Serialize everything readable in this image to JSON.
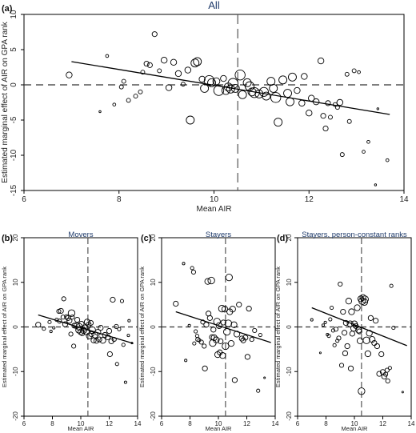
{
  "chart_data": [
    {
      "type": "scatter",
      "panel_label": "(a)",
      "title": "All",
      "xlabel": "Mean AIR",
      "ylabel": "Estimated marginal effect of AIR on GPA rank",
      "xlim": [
        6,
        14
      ],
      "ylim": [
        -15,
        10
      ],
      "xticks": [
        "6",
        "8",
        "10",
        "12",
        "14"
      ],
      "yticks": [
        "-15",
        "-10",
        "-5",
        "0",
        "5",
        "10"
      ],
      "x_ref": 10.5,
      "y_ref": 0,
      "fit_line": [
        [
          7,
          3.3
        ],
        [
          13.7,
          -4.2
        ]
      ],
      "points": [
        [
          6.95,
          1.4,
          3
        ],
        [
          7.6,
          -3.8,
          1
        ],
        [
          7.75,
          4.1,
          1.5
        ],
        [
          7.9,
          -2.8,
          1.5
        ],
        [
          8.05,
          -0.3,
          2
        ],
        [
          8.1,
          0.5,
          2
        ],
        [
          8.2,
          -2.2,
          2
        ],
        [
          8.35,
          -1.6,
          2
        ],
        [
          8.45,
          -1.0,
          2
        ],
        [
          8.5,
          1.8,
          2
        ],
        [
          8.58,
          3.0,
          2.5
        ],
        [
          8.65,
          2.8,
          2.5
        ],
        [
          8.75,
          7.2,
          2.5
        ],
        [
          8.85,
          2.0,
          2
        ],
        [
          8.95,
          3.5,
          3
        ],
        [
          9.05,
          -0.4,
          3
        ],
        [
          9.15,
          3.2,
          3
        ],
        [
          9.25,
          1.6,
          3
        ],
        [
          9.35,
          0.1,
          2
        ],
        [
          9.45,
          2.1,
          3
        ],
        [
          9.5,
          -5.0,
          4
        ],
        [
          9.6,
          3.1,
          4
        ],
        [
          9.65,
          3.3,
          4
        ],
        [
          9.75,
          0.8,
          3
        ],
        [
          9.8,
          -0.5,
          4
        ],
        [
          9.9,
          0.6,
          5
        ],
        [
          9.95,
          0.3,
          4
        ],
        [
          10.05,
          0.5,
          3.5
        ],
        [
          10.1,
          -0.8,
          5
        ],
        [
          10.2,
          0.9,
          3
        ],
        [
          10.25,
          -0.8,
          4
        ],
        [
          10.3,
          -0.3,
          4
        ],
        [
          10.35,
          -0.6,
          4
        ],
        [
          10.4,
          0.2,
          5
        ],
        [
          10.45,
          -0.5,
          4
        ],
        [
          10.55,
          1.4,
          5
        ],
        [
          10.6,
          -1.4,
          4
        ],
        [
          10.7,
          0.3,
          4
        ],
        [
          10.75,
          -0.2,
          4.5
        ],
        [
          10.8,
          -1.0,
          4
        ],
        [
          10.85,
          -1.1,
          5
        ],
        [
          10.95,
          -1.3,
          4
        ],
        [
          11.05,
          -1.0,
          4.5
        ],
        [
          11.1,
          -1.6,
          4
        ],
        [
          11.2,
          0.5,
          4
        ],
        [
          11.25,
          -0.5,
          4
        ],
        [
          11.3,
          -1.8,
          5
        ],
        [
          11.35,
          -5.3,
          4
        ],
        [
          11.45,
          0.7,
          4
        ],
        [
          11.55,
          -1.2,
          4
        ],
        [
          11.6,
          -2.4,
          4
        ],
        [
          11.65,
          1.1,
          4
        ],
        [
          11.75,
          -0.8,
          3
        ],
        [
          11.85,
          -2.6,
          3
        ],
        [
          11.9,
          1.2,
          3
        ],
        [
          12.0,
          -4.0,
          3
        ],
        [
          12.05,
          -1.9,
          3
        ],
        [
          12.15,
          -2.4,
          3
        ],
        [
          12.25,
          3.4,
          3
        ],
        [
          12.3,
          -4.4,
          2.5
        ],
        [
          12.35,
          -6.2,
          2.5
        ],
        [
          12.4,
          -2.6,
          2.5
        ],
        [
          12.45,
          -4.6,
          2
        ],
        [
          12.55,
          -2.8,
          2
        ],
        [
          12.6,
          -3.2,
          2
        ],
        [
          12.65,
          -2.5,
          3
        ],
        [
          12.7,
          -9.9,
          2
        ],
        [
          12.8,
          1.5,
          2
        ],
        [
          12.85,
          -5.2,
          2
        ],
        [
          12.95,
          2.0,
          2
        ],
        [
          13.05,
          1.8,
          1.5
        ],
        [
          13.15,
          -9.5,
          1.5
        ],
        [
          13.25,
          -8.1,
          1.5
        ],
        [
          13.45,
          -3.4,
          1
        ],
        [
          13.4,
          -14.2,
          1
        ],
        [
          13.65,
          -10.7,
          1.5
        ]
      ]
    },
    {
      "type": "scatter",
      "panel_label": "(b)",
      "title": "Movers",
      "xlabel": "Mean AIR",
      "ylabel": "Estimated marginal effect of AIR on GPA rank",
      "xlim": [
        6,
        14
      ],
      "ylim": [
        -20,
        20
      ],
      "xticks": [
        "6",
        "8",
        "10",
        "12",
        "14"
      ],
      "yticks": [
        "-20",
        "-10",
        "0",
        "10",
        "20"
      ],
      "x_ref": 10.5,
      "y_ref": 0,
      "fit_line": [
        [
          7,
          2.7
        ],
        [
          13.7,
          -3.7
        ]
      ],
      "points": [
        [
          7.0,
          0.5,
          3
        ],
        [
          7.4,
          -0.4,
          2
        ],
        [
          7.8,
          1.1,
          2
        ],
        [
          7.9,
          -1.0,
          1.5
        ],
        [
          8.1,
          -0.2,
          1.5
        ],
        [
          8.3,
          1.6,
          2
        ],
        [
          8.45,
          3.5,
          2.5
        ],
        [
          8.5,
          1.3,
          2.5
        ],
        [
          8.6,
          3.6,
          3
        ],
        [
          8.75,
          2.2,
          2.5
        ],
        [
          8.8,
          6.3,
          2.5
        ],
        [
          8.9,
          0.6,
          3
        ],
        [
          9.0,
          2.3,
          2.5
        ],
        [
          9.1,
          2.0,
          3
        ],
        [
          9.2,
          1.4,
          3
        ],
        [
          9.3,
          -1.6,
          2.5
        ],
        [
          9.35,
          3.1,
          4
        ],
        [
          9.4,
          2.2,
          2.5
        ],
        [
          9.5,
          -4.3,
          2.5
        ],
        [
          9.55,
          0.3,
          3
        ],
        [
          9.7,
          0.3,
          3.5
        ],
        [
          9.75,
          1.6,
          3
        ],
        [
          9.85,
          -0.7,
          3.5
        ],
        [
          9.9,
          0.0,
          4
        ],
        [
          10.0,
          -1.1,
          3.5
        ],
        [
          10.05,
          0.7,
          3
        ],
        [
          10.1,
          -1.4,
          3
        ],
        [
          10.2,
          -0.8,
          3.5
        ],
        [
          10.3,
          -0.2,
          3.5
        ],
        [
          10.4,
          -1.0,
          4
        ],
        [
          10.45,
          1.1,
          3.5
        ],
        [
          10.55,
          0.5,
          3
        ],
        [
          10.6,
          -2.0,
          3.5
        ],
        [
          10.7,
          0.9,
          3
        ],
        [
          10.75,
          -1.6,
          3
        ],
        [
          10.8,
          -0.7,
          4
        ],
        [
          10.9,
          -3.0,
          3
        ],
        [
          11.0,
          -1.8,
          3.5
        ],
        [
          11.1,
          -3.1,
          3
        ],
        [
          11.2,
          -1.2,
          3.5
        ],
        [
          11.3,
          -2.8,
          3
        ],
        [
          11.4,
          -0.2,
          3
        ],
        [
          11.55,
          -3.0,
          3.5
        ],
        [
          11.7,
          -1.8,
          3
        ],
        [
          11.9,
          -2.3,
          3
        ],
        [
          12.0,
          -0.9,
          3
        ],
        [
          12.05,
          -6.1,
          3
        ],
        [
          12.15,
          -3.2,
          3
        ],
        [
          12.25,
          6.1,
          3
        ],
        [
          12.35,
          -2.8,
          2.5
        ],
        [
          12.5,
          0.1,
          2.5
        ],
        [
          12.55,
          -8.3,
          2
        ],
        [
          12.7,
          -0.5,
          2
        ],
        [
          12.9,
          5.8,
          2
        ],
        [
          13.0,
          -4.0,
          2
        ],
        [
          13.15,
          -12.4,
          1.5
        ],
        [
          13.35,
          -1.9,
          1.5
        ],
        [
          13.4,
          1.4,
          1.5
        ],
        [
          13.6,
          -3.6,
          1
        ]
      ]
    },
    {
      "type": "scatter",
      "panel_label": "(c)",
      "title": "Stayers",
      "xlabel": "Mean AIR",
      "ylabel": "Estimated marginal effect of AIR on GPA rank",
      "xlim": [
        6,
        14
      ],
      "ylim": [
        -20,
        20
      ],
      "xticks": [
        "6",
        "8",
        "10",
        "12",
        "14"
      ],
      "yticks": [
        "-20",
        "-10",
        "0",
        "10",
        "20"
      ],
      "x_ref": 10.5,
      "y_ref": 0,
      "fit_line": [
        [
          7,
          3.4
        ],
        [
          13.7,
          -3.5
        ]
      ],
      "points": [
        [
          7.0,
          5.2,
          3
        ],
        [
          7.55,
          14.2,
          1.5
        ],
        [
          7.7,
          -7.5,
          1.5
        ],
        [
          7.95,
          0.3,
          1.5
        ],
        [
          8.15,
          13.2,
          2
        ],
        [
          8.25,
          12.3,
          2.5
        ],
        [
          8.3,
          -3.7,
          2
        ],
        [
          8.4,
          -1.0,
          2
        ],
        [
          8.5,
          -2.0,
          2
        ],
        [
          8.55,
          -2.8,
          2.5
        ],
        [
          8.65,
          -3.0,
          2
        ],
        [
          8.8,
          -3.4,
          2.5
        ],
        [
          8.9,
          1.1,
          2.5
        ],
        [
          9.0,
          -4.3,
          2.5
        ],
        [
          9.05,
          -9.3,
          3
        ],
        [
          9.15,
          0.5,
          3
        ],
        [
          9.25,
          10.2,
          3.5
        ],
        [
          9.3,
          3.0,
          3
        ],
        [
          9.4,
          2.0,
          3
        ],
        [
          9.5,
          10.4,
          4
        ],
        [
          9.55,
          -2.3,
          3
        ],
        [
          9.6,
          -3.6,
          4
        ],
        [
          9.65,
          -0.6,
          3
        ],
        [
          9.7,
          -2.4,
          3.5
        ],
        [
          9.85,
          -2.9,
          3.5
        ],
        [
          9.9,
          1.2,
          4
        ],
        [
          9.95,
          -6.2,
          3.5
        ],
        [
          10.05,
          0.3,
          3.5
        ],
        [
          10.1,
          -5.7,
          3
        ],
        [
          10.15,
          -3.2,
          3
        ],
        [
          10.25,
          4.1,
          4
        ],
        [
          10.3,
          -6.4,
          3.5
        ],
        [
          10.35,
          1.0,
          3
        ],
        [
          10.45,
          4.0,
          3.5
        ],
        [
          10.5,
          -4.3,
          4
        ],
        [
          10.6,
          -1.1,
          4
        ],
        [
          10.7,
          0.8,
          4
        ],
        [
          10.75,
          11.1,
          4
        ],
        [
          10.8,
          3.4,
          3.5
        ],
        [
          10.9,
          -3.7,
          3.5
        ],
        [
          11.0,
          4.0,
          3.5
        ],
        [
          11.1,
          0.5,
          3.5
        ],
        [
          11.15,
          -11.9,
          3
        ],
        [
          11.3,
          -1.6,
          3.5
        ],
        [
          11.45,
          5.0,
          3
        ],
        [
          11.65,
          -2.6,
          3
        ],
        [
          11.75,
          -3.0,
          3
        ],
        [
          11.9,
          -2.4,
          3
        ],
        [
          12.05,
          -6.7,
          3
        ],
        [
          12.15,
          4.1,
          3
        ],
        [
          12.35,
          -2.8,
          2.5
        ],
        [
          12.55,
          -0.8,
          2.5
        ],
        [
          12.8,
          -14.3,
          2
        ],
        [
          12.95,
          -1.8,
          2
        ],
        [
          13.25,
          -11.4,
          1
        ]
      ]
    },
    {
      "type": "scatter",
      "panel_label": "(d)",
      "title": "Stayers, person-constant ranks",
      "xlabel": "Mean AIR",
      "ylabel": "Estimated marginal effect of AIR on GPA rank",
      "xlim": [
        6,
        14
      ],
      "ylim": [
        -20,
        20
      ],
      "xticks": [
        "6",
        "8",
        "10",
        "12",
        "14"
      ],
      "yticks": [
        "-20",
        "-10",
        "0",
        "10",
        "20"
      ],
      "x_ref": 10.5,
      "y_ref": 0,
      "fit_line": [
        [
          7,
          4.3
        ],
        [
          13.7,
          -4.2
        ]
      ],
      "points": [
        [
          7.0,
          1.6,
          1.5
        ],
        [
          7.6,
          -5.8,
          1
        ],
        [
          7.8,
          0.4,
          1.5
        ],
        [
          7.95,
          1.0,
          1.5
        ],
        [
          8.1,
          -1.7,
          1.5
        ],
        [
          8.2,
          -2.0,
          2
        ],
        [
          8.3,
          1.7,
          2
        ],
        [
          8.4,
          4.3,
          2
        ],
        [
          8.5,
          -0.8,
          2
        ],
        [
          8.6,
          -4.1,
          2
        ],
        [
          8.7,
          -0.5,
          2.5
        ],
        [
          8.8,
          -3.1,
          2
        ],
        [
          8.9,
          -2.5,
          2.5
        ],
        [
          9.0,
          9.6,
          2.5
        ],
        [
          9.1,
          -8.6,
          2.5
        ],
        [
          9.2,
          3.4,
          3
        ],
        [
          9.3,
          -1.3,
          3
        ],
        [
          9.35,
          -5.9,
          3
        ],
        [
          9.4,
          0.9,
          3
        ],
        [
          9.5,
          -4.3,
          3
        ],
        [
          9.6,
          5.8,
          3.5
        ],
        [
          9.7,
          0.7,
          3.5
        ],
        [
          9.75,
          -9.3,
          3
        ],
        [
          9.8,
          3.4,
          3.5
        ],
        [
          9.85,
          -1.5,
          3
        ],
        [
          9.95,
          -0.3,
          3.5
        ],
        [
          10.0,
          0.7,
          3.5
        ],
        [
          10.1,
          0.2,
          3
        ],
        [
          10.2,
          4.3,
          3.5
        ],
        [
          10.3,
          -0.7,
          3.5
        ],
        [
          10.35,
          -1.0,
          3
        ],
        [
          10.4,
          -3.1,
          3.5
        ],
        [
          10.45,
          6.3,
          3.5
        ],
        [
          10.5,
          -14.4,
          4
        ],
        [
          10.55,
          5.8,
          4
        ],
        [
          10.6,
          6.6,
          3.5
        ],
        [
          10.7,
          5.6,
          4
        ],
        [
          10.75,
          6.2,
          4
        ],
        [
          10.85,
          -3.0,
          4
        ],
        [
          10.95,
          -6.0,
          3.5
        ],
        [
          11.05,
          -1.4,
          3.5
        ],
        [
          11.15,
          2.0,
          3
        ],
        [
          11.25,
          -2.8,
          3.5
        ],
        [
          11.4,
          -3.6,
          3
        ],
        [
          11.5,
          1.4,
          3
        ],
        [
          11.6,
          -4.3,
          3
        ],
        [
          11.75,
          -10.5,
          3
        ],
        [
          11.9,
          -6.1,
          3
        ],
        [
          12.0,
          -10.1,
          3
        ],
        [
          12.1,
          -11.1,
          3
        ],
        [
          12.2,
          -10.6,
          2.5
        ],
        [
          12.3,
          -9.7,
          2.5
        ],
        [
          12.35,
          -12.1,
          2.5
        ],
        [
          12.5,
          -9.2,
          2
        ],
        [
          12.6,
          9.2,
          2
        ],
        [
          12.75,
          -0.2,
          2
        ],
        [
          13.4,
          -14.6,
          1
        ]
      ]
    }
  ]
}
